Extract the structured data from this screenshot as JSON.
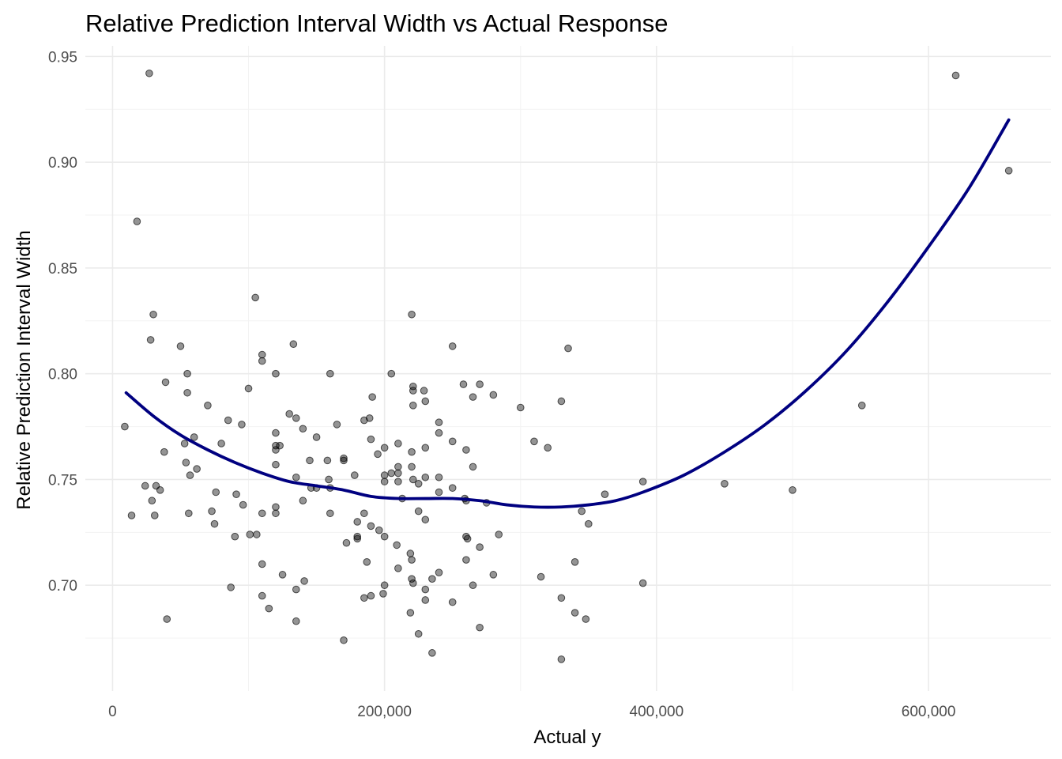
{
  "chart_data": {
    "type": "scatter",
    "title": "Relative Prediction Interval Width vs Actual Response",
    "xlabel": "Actual y",
    "ylabel": "Relative Prediction Interval Width",
    "xlim": [
      -20000,
      690000
    ],
    "ylim": [
      0.65,
      0.955
    ],
    "x_ticks": [
      0,
      200000,
      400000,
      600000
    ],
    "x_tick_labels": [
      "0",
      "200,000",
      "400,000",
      "600,000"
    ],
    "x_minor_ticks": [
      100000,
      300000,
      500000
    ],
    "y_ticks": [
      0.7,
      0.75,
      0.8,
      0.85,
      0.9,
      0.95
    ],
    "y_tick_labels": [
      "0.70",
      "0.75",
      "0.80",
      "0.85",
      "0.90",
      "0.95"
    ],
    "y_minor_ticks": [
      0.675,
      0.725,
      0.775,
      0.825,
      0.875,
      0.925
    ],
    "grid": true,
    "legend": "none",
    "colors": {
      "points": "#000000",
      "smooth_line": "#000080",
      "grid": "#ebebeb"
    },
    "points": [
      [
        9000,
        0.775
      ],
      [
        14000,
        0.733
      ],
      [
        18000,
        0.872
      ],
      [
        24000,
        0.747
      ],
      [
        27000,
        0.942
      ],
      [
        28000,
        0.816
      ],
      [
        29000,
        0.74
      ],
      [
        30000,
        0.828
      ],
      [
        31000,
        0.733
      ],
      [
        32000,
        0.747
      ],
      [
        35000,
        0.745
      ],
      [
        38000,
        0.763
      ],
      [
        39000,
        0.796
      ],
      [
        40000,
        0.684
      ],
      [
        50000,
        0.813
      ],
      [
        53000,
        0.767
      ],
      [
        54000,
        0.758
      ],
      [
        55000,
        0.791
      ],
      [
        55000,
        0.8
      ],
      [
        56000,
        0.734
      ],
      [
        57000,
        0.752
      ],
      [
        60000,
        0.77
      ],
      [
        62000,
        0.755
      ],
      [
        70000,
        0.785
      ],
      [
        73000,
        0.735
      ],
      [
        75000,
        0.729
      ],
      [
        76000,
        0.744
      ],
      [
        80000,
        0.767
      ],
      [
        85000,
        0.778
      ],
      [
        87000,
        0.699
      ],
      [
        90000,
        0.723
      ],
      [
        91000,
        0.743
      ],
      [
        95000,
        0.776
      ],
      [
        96000,
        0.738
      ],
      [
        100000,
        0.793
      ],
      [
        101000,
        0.724
      ],
      [
        105000,
        0.836
      ],
      [
        106000,
        0.724
      ],
      [
        110000,
        0.806
      ],
      [
        110000,
        0.809
      ],
      [
        110000,
        0.734
      ],
      [
        110000,
        0.71
      ],
      [
        110000,
        0.695
      ],
      [
        115000,
        0.689
      ],
      [
        120000,
        0.8
      ],
      [
        120000,
        0.772
      ],
      [
        120000,
        0.766
      ],
      [
        120000,
        0.764
      ],
      [
        120000,
        0.757
      ],
      [
        120000,
        0.737
      ],
      [
        120000,
        0.734
      ],
      [
        123000,
        0.766
      ],
      [
        125000,
        0.705
      ],
      [
        130000,
        0.781
      ],
      [
        133000,
        0.814
      ],
      [
        135000,
        0.779
      ],
      [
        135000,
        0.751
      ],
      [
        135000,
        0.698
      ],
      [
        135000,
        0.683
      ],
      [
        140000,
        0.774
      ],
      [
        140000,
        0.74
      ],
      [
        141000,
        0.702
      ],
      [
        145000,
        0.759
      ],
      [
        146000,
        0.746
      ],
      [
        150000,
        0.77
      ],
      [
        150000,
        0.746
      ],
      [
        158000,
        0.759
      ],
      [
        159000,
        0.75
      ],
      [
        160000,
        0.8
      ],
      [
        160000,
        0.746
      ],
      [
        160000,
        0.734
      ],
      [
        165000,
        0.776
      ],
      [
        170000,
        0.76
      ],
      [
        170000,
        0.759
      ],
      [
        170000,
        0.674
      ],
      [
        172000,
        0.72
      ],
      [
        178000,
        0.752
      ],
      [
        180000,
        0.73
      ],
      [
        180000,
        0.723
      ],
      [
        180000,
        0.722
      ],
      [
        185000,
        0.778
      ],
      [
        185000,
        0.734
      ],
      [
        185000,
        0.694
      ],
      [
        187000,
        0.711
      ],
      [
        189000,
        0.779
      ],
      [
        190000,
        0.769
      ],
      [
        190000,
        0.728
      ],
      [
        190000,
        0.695
      ],
      [
        191000,
        0.789
      ],
      [
        195000,
        0.762
      ],
      [
        196000,
        0.726
      ],
      [
        199000,
        0.696
      ],
      [
        200000,
        0.765
      ],
      [
        200000,
        0.752
      ],
      [
        200000,
        0.749
      ],
      [
        200000,
        0.723
      ],
      [
        200000,
        0.7
      ],
      [
        205000,
        0.8
      ],
      [
        205000,
        0.753
      ],
      [
        209000,
        0.719
      ],
      [
        210000,
        0.767
      ],
      [
        210000,
        0.756
      ],
      [
        210000,
        0.753
      ],
      [
        210000,
        0.749
      ],
      [
        210000,
        0.708
      ],
      [
        213000,
        0.741
      ],
      [
        219000,
        0.715
      ],
      [
        219000,
        0.687
      ],
      [
        220000,
        0.828
      ],
      [
        220000,
        0.763
      ],
      [
        220000,
        0.756
      ],
      [
        220000,
        0.712
      ],
      [
        220000,
        0.703
      ],
      [
        221000,
        0.794
      ],
      [
        221000,
        0.792
      ],
      [
        221000,
        0.785
      ],
      [
        221000,
        0.75
      ],
      [
        221000,
        0.701
      ],
      [
        225000,
        0.748
      ],
      [
        225000,
        0.735
      ],
      [
        225000,
        0.677
      ],
      [
        229000,
        0.792
      ],
      [
        230000,
        0.787
      ],
      [
        230000,
        0.765
      ],
      [
        230000,
        0.751
      ],
      [
        230000,
        0.731
      ],
      [
        230000,
        0.698
      ],
      [
        230000,
        0.693
      ],
      [
        235000,
        0.703
      ],
      [
        235000,
        0.668
      ],
      [
        240000,
        0.777
      ],
      [
        240000,
        0.772
      ],
      [
        240000,
        0.751
      ],
      [
        240000,
        0.744
      ],
      [
        240000,
        0.706
      ],
      [
        250000,
        0.813
      ],
      [
        250000,
        0.768
      ],
      [
        250000,
        0.746
      ],
      [
        250000,
        0.692
      ],
      [
        258000,
        0.795
      ],
      [
        259000,
        0.741
      ],
      [
        260000,
        0.764
      ],
      [
        260000,
        0.74
      ],
      [
        260000,
        0.712
      ],
      [
        260000,
        0.723
      ],
      [
        261000,
        0.722
      ],
      [
        265000,
        0.789
      ],
      [
        265000,
        0.756
      ],
      [
        265000,
        0.7
      ],
      [
        270000,
        0.795
      ],
      [
        270000,
        0.718
      ],
      [
        270000,
        0.68
      ],
      [
        275000,
        0.739
      ],
      [
        280000,
        0.79
      ],
      [
        280000,
        0.705
      ],
      [
        284000,
        0.724
      ],
      [
        300000,
        0.784
      ],
      [
        310000,
        0.768
      ],
      [
        315000,
        0.704
      ],
      [
        320000,
        0.765
      ],
      [
        330000,
        0.787
      ],
      [
        330000,
        0.694
      ],
      [
        330000,
        0.665
      ],
      [
        335000,
        0.812
      ],
      [
        340000,
        0.711
      ],
      [
        340000,
        0.687
      ],
      [
        345000,
        0.735
      ],
      [
        348000,
        0.684
      ],
      [
        350000,
        0.729
      ],
      [
        362000,
        0.743
      ],
      [
        390000,
        0.749
      ],
      [
        390000,
        0.701
      ],
      [
        450000,
        0.748
      ],
      [
        500000,
        0.745
      ],
      [
        551000,
        0.785
      ],
      [
        620000,
        0.941
      ],
      [
        659000,
        0.896
      ]
    ],
    "smooth": {
      "x": [
        10000,
        30000,
        50000,
        70000,
        90000,
        110000,
        130000,
        150000,
        170000,
        190000,
        210000,
        230000,
        250000,
        270000,
        290000,
        310000,
        330000,
        350000,
        370000,
        390000,
        420000,
        450000,
        480000,
        510000,
        540000,
        570000,
        600000,
        630000,
        659000
      ],
      "y": [
        0.791,
        0.78,
        0.771,
        0.764,
        0.758,
        0.753,
        0.749,
        0.747,
        0.745,
        0.742,
        0.741,
        0.741,
        0.741,
        0.74,
        0.738,
        0.737,
        0.737,
        0.738,
        0.74,
        0.744,
        0.752,
        0.763,
        0.776,
        0.792,
        0.811,
        0.834,
        0.86,
        0.888,
        0.92
      ]
    }
  }
}
